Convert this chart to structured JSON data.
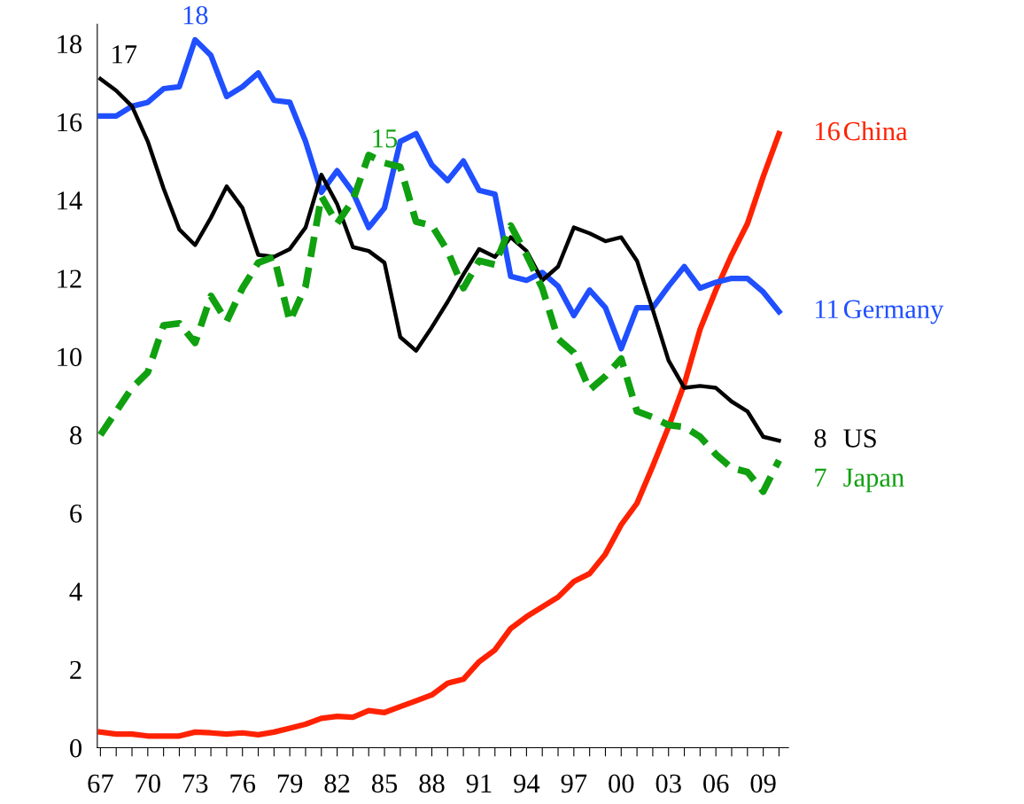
{
  "chart_data": {
    "type": "line",
    "x": [
      1967,
      1968,
      1969,
      1970,
      1971,
      1972,
      1973,
      1974,
      1975,
      1976,
      1977,
      1978,
      1979,
      1980,
      1981,
      1982,
      1983,
      1984,
      1985,
      1986,
      1987,
      1988,
      1989,
      1990,
      1991,
      1992,
      1993,
      1994,
      1995,
      1996,
      1997,
      1998,
      1999,
      2000,
      2001,
      2002,
      2003,
      2004,
      2005,
      2006,
      2007,
      2008,
      2009,
      2010
    ],
    "xlim": [
      1966.8,
      2010.6
    ],
    "xticks": [
      {
        "value": 1967,
        "label": "67"
      },
      {
        "value": 1968,
        "label": null
      },
      {
        "value": 1969,
        "label": null
      },
      {
        "value": 1970,
        "label": "70"
      },
      {
        "value": 1971,
        "label": null
      },
      {
        "value": 1972,
        "label": null
      },
      {
        "value": 1973,
        "label": "73"
      },
      {
        "value": 1974,
        "label": null
      },
      {
        "value": 1975,
        "label": null
      },
      {
        "value": 1976,
        "label": "76"
      },
      {
        "value": 1977,
        "label": null
      },
      {
        "value": 1978,
        "label": null
      },
      {
        "value": 1979,
        "label": "79"
      },
      {
        "value": 1980,
        "label": null
      },
      {
        "value": 1981,
        "label": null
      },
      {
        "value": 1982,
        "label": "82"
      },
      {
        "value": 1983,
        "label": null
      },
      {
        "value": 1984,
        "label": null
      },
      {
        "value": 1985,
        "label": "85"
      },
      {
        "value": 1986,
        "label": null
      },
      {
        "value": 1987,
        "label": null
      },
      {
        "value": 1988,
        "label": "88"
      },
      {
        "value": 1989,
        "label": null
      },
      {
        "value": 1990,
        "label": null
      },
      {
        "value": 1991,
        "label": "91"
      },
      {
        "value": 1992,
        "label": null
      },
      {
        "value": 1993,
        "label": null
      },
      {
        "value": 1994,
        "label": "94"
      },
      {
        "value": 1995,
        "label": null
      },
      {
        "value": 1996,
        "label": null
      },
      {
        "value": 1997,
        "label": "97"
      },
      {
        "value": 1998,
        "label": null
      },
      {
        "value": 1999,
        "label": null
      },
      {
        "value": 2000,
        "label": "00"
      },
      {
        "value": 2001,
        "label": null
      },
      {
        "value": 2002,
        "label": null
      },
      {
        "value": 2003,
        "label": "03"
      },
      {
        "value": 2004,
        "label": null
      },
      {
        "value": 2005,
        "label": null
      },
      {
        "value": 2006,
        "label": "06"
      },
      {
        "value": 2007,
        "label": null
      },
      {
        "value": 2008,
        "label": null
      },
      {
        "value": 2009,
        "label": "09"
      },
      {
        "value": 2010,
        "label": null
      }
    ],
    "ylim": [
      0,
      18.5
    ],
    "yticks": [
      0,
      2,
      4,
      6,
      8,
      10,
      12,
      14,
      16,
      18
    ],
    "grid": false,
    "legend": false,
    "series": [
      {
        "name": "China",
        "color": "#ff2200",
        "line_style": "solid",
        "values": [
          0.4,
          0.35,
          0.35,
          0.3,
          0.3,
          0.3,
          0.4,
          0.38,
          0.35,
          0.38,
          0.33,
          0.4,
          0.5,
          0.6,
          0.75,
          0.8,
          0.78,
          0.95,
          0.9,
          1.05,
          1.2,
          1.35,
          1.65,
          1.75,
          2.2,
          2.5,
          3.05,
          3.35,
          3.6,
          3.85,
          4.25,
          4.45,
          4.95,
          5.7,
          6.25,
          7.2,
          8.2,
          9.3,
          10.7,
          11.7,
          12.6,
          13.4,
          14.6,
          15.7
        ],
        "value_labels": [
          null,
          null,
          null,
          null,
          null,
          null,
          null,
          null,
          null,
          null,
          null,
          null,
          null,
          null,
          null,
          null,
          null,
          null,
          null,
          null,
          null,
          null,
          null,
          null,
          null,
          null,
          null,
          null,
          null,
          null,
          null,
          null,
          null,
          null,
          null,
          null,
          null,
          null,
          null,
          null,
          null,
          null,
          null,
          "16"
        ]
      },
      {
        "name": "Germany",
        "color": "#1f4fff",
        "line_style": "solid",
        "values": [
          16.15,
          16.15,
          16.4,
          16.5,
          16.85,
          16.9,
          18.1,
          17.7,
          16.65,
          16.9,
          17.25,
          16.55,
          16.5,
          15.5,
          14.2,
          14.75,
          14.2,
          13.3,
          13.8,
          15.5,
          15.7,
          14.9,
          14.5,
          15.0,
          14.25,
          14.15,
          12.05,
          11.95,
          12.15,
          11.8,
          11.05,
          11.7,
          11.25,
          10.2,
          11.25,
          11.25,
          11.8,
          12.3,
          11.75,
          11.9,
          12.0,
          12.0,
          11.65,
          11.15
        ],
        "value_labels": [
          null,
          null,
          null,
          null,
          null,
          null,
          "18",
          null,
          null,
          null,
          null,
          null,
          null,
          null,
          null,
          null,
          null,
          null,
          null,
          null,
          null,
          null,
          null,
          null,
          null,
          null,
          null,
          null,
          null,
          null,
          null,
          null,
          null,
          null,
          null,
          null,
          null,
          null,
          null,
          null,
          null,
          null,
          null,
          "11"
        ]
      },
      {
        "name": "US",
        "color": "#000000",
        "line_style": "solid",
        "values": [
          17.1,
          16.8,
          16.4,
          15.5,
          14.3,
          13.25,
          12.85,
          13.55,
          14.35,
          13.8,
          12.6,
          12.55,
          12.75,
          13.3,
          14.65,
          13.9,
          12.8,
          12.7,
          12.4,
          10.5,
          10.15,
          10.75,
          11.4,
          12.1,
          12.75,
          12.55,
          13.05,
          12.7,
          11.95,
          12.3,
          13.3,
          13.15,
          12.95,
          13.05,
          12.45,
          11.2,
          9.9,
          9.2,
          9.25,
          9.2,
          8.85,
          8.6,
          7.95,
          7.85
        ],
        "value_labels": [
          "17",
          null,
          null,
          null,
          null,
          null,
          null,
          null,
          null,
          null,
          null,
          null,
          null,
          null,
          null,
          null,
          null,
          null,
          null,
          null,
          null,
          null,
          null,
          null,
          null,
          null,
          null,
          null,
          null,
          null,
          null,
          null,
          null,
          null,
          null,
          null,
          null,
          null,
          null,
          null,
          null,
          null,
          null,
          "8"
        ]
      },
      {
        "name": "Japan",
        "color": "#10a010",
        "line_style": "dashed",
        "values": [
          8.0,
          8.6,
          9.2,
          9.6,
          10.8,
          10.85,
          10.35,
          11.55,
          10.9,
          11.75,
          12.4,
          12.55,
          10.9,
          11.8,
          14.1,
          13.4,
          14.0,
          15.15,
          14.95,
          14.85,
          13.45,
          13.35,
          12.7,
          11.75,
          12.45,
          12.35,
          13.35,
          12.6,
          11.75,
          10.45,
          10.1,
          9.15,
          9.5,
          9.95,
          8.6,
          8.45,
          8.25,
          8.2,
          7.95,
          7.5,
          7.15,
          7.05,
          6.55,
          7.35
        ],
        "value_labels": [
          null,
          null,
          null,
          null,
          null,
          null,
          null,
          null,
          null,
          null,
          null,
          null,
          null,
          null,
          null,
          null,
          null,
          null,
          "15",
          null,
          null,
          null,
          null,
          null,
          null,
          null,
          null,
          null,
          null,
          null,
          null,
          null,
          null,
          null,
          null,
          null,
          null,
          null,
          null,
          null,
          null,
          null,
          null,
          "7"
        ]
      }
    ]
  }
}
